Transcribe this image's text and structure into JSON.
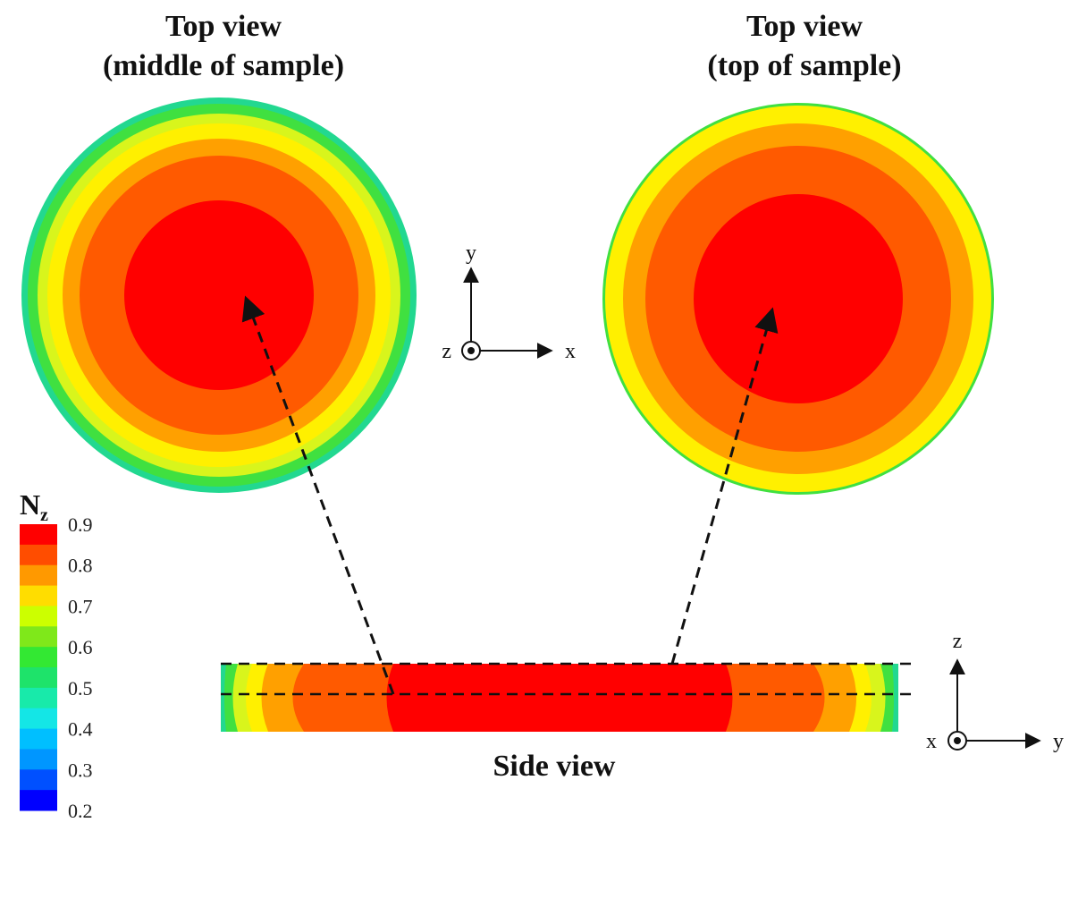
{
  "titles": {
    "left_line1": "Top view",
    "left_line2": "(middle of sample)",
    "right_line1": "Top view",
    "right_line2": "(top of sample)",
    "side": "Side view"
  },
  "axes_top": {
    "y": "y",
    "z": "z",
    "x": "x"
  },
  "axes_side": {
    "z": "z",
    "x": "x",
    "y": "y"
  },
  "colorbar": {
    "title_main": "N",
    "title_sub": "z",
    "tick_labels": [
      "0.9",
      "0.8",
      "0.7",
      "0.6",
      "0.5",
      "0.4",
      "0.3",
      "0.2"
    ],
    "band_colors_top_to_bottom": [
      "#ff0000",
      "#ff4d00",
      "#ff9900",
      "#ffdd00",
      "#ccff00",
      "#7fe81a",
      "#33e833",
      "#1ee36a",
      "#18eaaa",
      "#14e6e6",
      "#00bfff",
      "#0096ff",
      "#0050ff",
      "#0000ff"
    ]
  },
  "contour_colors": {
    "red": "#ff0000",
    "red_orange": "#ff5a00",
    "orange": "#ffa000",
    "yellow": "#fff000",
    "yellow_green": "#d8f51c",
    "green": "#40e040",
    "teal_green": "#22d890"
  }
}
